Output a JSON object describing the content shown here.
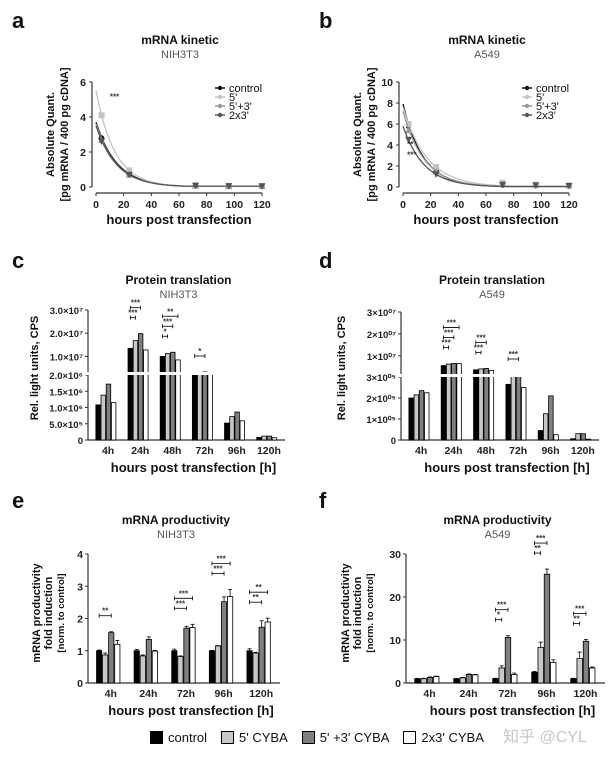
{
  "legend_bottom": {
    "items": [
      {
        "label": "control",
        "color": "#000000"
      },
      {
        "label": "5' CYBA",
        "color": "#c8c8c8"
      },
      {
        "label": "5' +3' CYBA",
        "color": "#808080"
      },
      {
        "label": "2x3' CYBA",
        "color": "#ffffff"
      }
    ]
  },
  "watermark": "知乎 @CYL",
  "chart_data": [
    {
      "panel": "a",
      "type": "line",
      "title": "mRNA kinetic",
      "subtitle": "NIH3T3",
      "xlabel": "hours post transfection",
      "ylabel": [
        "Absolute Quant.",
        "[pg mRNA / 400 pg cDNA]"
      ],
      "xlim": [
        0,
        120
      ],
      "ylim": [
        0,
        6
      ],
      "xticks": [
        0,
        20,
        40,
        60,
        80,
        100,
        120
      ],
      "yticks": [
        0,
        2,
        4,
        6
      ],
      "legend": "top-right",
      "x": [
        4,
        24,
        72,
        96,
        120
      ],
      "series": [
        {
          "name": "control",
          "color": "#111111",
          "marker": "circle",
          "values": [
            2.8,
            0.75,
            0.08,
            0.05,
            0.05
          ],
          "fit_start": 3.7
        },
        {
          "name": "5'",
          "color": "#c4c4c4",
          "marker": "square",
          "values": [
            4.1,
            0.95,
            0.1,
            0.06,
            0.05
          ],
          "fit_start": 5.5
        },
        {
          "name": "5'+3'",
          "color": "#9a9a9a",
          "marker": "triangle-up",
          "values": [
            2.7,
            0.7,
            0.08,
            0.05,
            0.05
          ],
          "fit_start": 3.6
        },
        {
          "name": "2x3'",
          "color": "#555555",
          "marker": "triangle-down",
          "values": [
            2.6,
            0.7,
            0.07,
            0.05,
            0.04
          ],
          "fit_start": 3.5
        }
      ],
      "annotations": [
        {
          "text": "***",
          "x": 10,
          "y": 5
        }
      ]
    },
    {
      "panel": "b",
      "type": "line",
      "title": "mRNA kinetic",
      "subtitle": "A549",
      "xlabel": "hours post transfection",
      "ylabel": [
        "Absolute Quant.",
        "[pg mRNA / 400 pg cDNA]"
      ],
      "xlim": [
        0,
        120
      ],
      "ylim": [
        0,
        10
      ],
      "xticks": [
        0,
        20,
        40,
        60,
        80,
        100,
        120
      ],
      "yticks": [
        0,
        2,
        4,
        6,
        8,
        10
      ],
      "legend": "top-right",
      "x": [
        4,
        24,
        72,
        96,
        120
      ],
      "series": [
        {
          "name": "control",
          "color": "#111111",
          "marker": "circle",
          "values": [
            5.8,
            1.5,
            0.2,
            0.15,
            0.1
          ],
          "fit_start": 7.9
        },
        {
          "name": "5'",
          "color": "#c4c4c4",
          "marker": "square",
          "values": [
            6.0,
            1.9,
            0.4,
            0.2,
            0.15
          ],
          "fit_start": 7.6
        },
        {
          "name": "5'+3'",
          "color": "#9a9a9a",
          "marker": "triangle-up",
          "values": [
            5.4,
            1.5,
            0.3,
            0.2,
            0.15
          ],
          "fit_start": 7.2
        },
        {
          "name": "2x3'",
          "color": "#555555",
          "marker": "triangle-down",
          "values": [
            4.5,
            1.2,
            0.2,
            0.15,
            0.1
          ],
          "fit_start": 5.8
        }
      ],
      "annotations": [
        {
          "text": "**",
          "x": 3,
          "y": 3.8
        },
        {
          "text": "***",
          "x": 3,
          "y": 2.8
        }
      ]
    },
    {
      "panel": "c",
      "type": "bar",
      "title": "Protein translation",
      "subtitle": "NIH3T3",
      "xlabel": "hours post transfection [h]",
      "ylabel": "Rel. light units, CPS",
      "axis_break": true,
      "lower_ylim": [
        0,
        2000000
      ],
      "upper_ylim": [
        2000000,
        30000000
      ],
      "lower_yticks": [
        "0",
        "5.0×10⁵",
        "1.0×10⁶",
        "1.5×10⁶",
        "2.0×10⁶"
      ],
      "upper_yticks": [
        "1.0×10⁷",
        "2.0×10⁷",
        "3.0×10⁷"
      ],
      "upper_ytick_values": [
        10000000,
        20000000,
        30000000
      ],
      "lower_ytick_values": [
        0,
        500000,
        1000000,
        1500000,
        2000000
      ],
      "categories": [
        "4h",
        "24h",
        "48h",
        "72h",
        "96h",
        "120h"
      ],
      "series": [
        {
          "name": "control",
          "values": [
            1080000,
            13500000,
            10000000,
            2400000,
            520000,
            80000
          ]
        },
        {
          "name": "5' CYBA",
          "values": [
            1380000,
            16800000,
            11200000,
            3000000,
            720000,
            120000
          ]
        },
        {
          "name": "5' +3' CYBA",
          "values": [
            1720000,
            19800000,
            11800000,
            3300000,
            860000,
            120000
          ]
        },
        {
          "name": "2x3' CYBA",
          "values": [
            1150000,
            12800000,
            8500000,
            2600000,
            590000,
            70000
          ]
        }
      ],
      "significance": [
        {
          "group": 1,
          "from": 0,
          "to": 2,
          "text": "***",
          "level": 2
        },
        {
          "group": 1,
          "from": 0,
          "to": 1,
          "text": "***",
          "level": 1
        },
        {
          "group": 2,
          "from": 0,
          "to": 3,
          "text": "**",
          "level": 3
        },
        {
          "group": 2,
          "from": 0,
          "to": 2,
          "text": "***",
          "level": 2
        },
        {
          "group": 2,
          "from": 0,
          "to": 1,
          "text": "*",
          "level": 1
        },
        {
          "group": 3,
          "from": 0,
          "to": 2,
          "text": "*",
          "level": 1
        }
      ]
    },
    {
      "panel": "d",
      "type": "bar",
      "title": "Protein translation",
      "subtitle": "A549",
      "xlabel": "hours post transfection [h]",
      "ylabel": "Rel. light units, CPS",
      "axis_break": true,
      "lower_ylim": [
        0,
        300000
      ],
      "upper_ylim": [
        300000,
        30000000
      ],
      "lower_yticks": [
        "0",
        "1×10⁰⁵",
        "2×10⁰⁵",
        "3×10⁰⁵"
      ],
      "upper_yticks": [
        "1×10⁰⁷",
        "2×10⁰⁷",
        "3×10⁰⁷"
      ],
      "upper_ytick_values": [
        10000000,
        20000000,
        30000000
      ],
      "lower_ytick_values": [
        0,
        100000,
        200000,
        300000
      ],
      "categories": [
        "4h",
        "24h",
        "48h",
        "72h",
        "96h",
        "120h"
      ],
      "series": [
        {
          "name": "control",
          "values": [
            200000,
            5500000,
            3600000,
            265000,
            45000,
            6000
          ]
        },
        {
          "name": "5' CYBA",
          "values": [
            215000,
            6200000,
            4000000,
            1000000,
            125000,
            30000
          ]
        },
        {
          "name": "5' +3' CYBA",
          "values": [
            235000,
            6500000,
            4200000,
            1200000,
            210000,
            30000
          ]
        },
        {
          "name": "2x3' CYBA",
          "values": [
            225000,
            6400000,
            3300000,
            250000,
            25000,
            4000
          ]
        }
      ],
      "significance": [
        {
          "group": 1,
          "from": 0,
          "to": 3,
          "text": "***",
          "level": 3
        },
        {
          "group": 1,
          "from": 0,
          "to": 2,
          "text": "***",
          "level": 2
        },
        {
          "group": 1,
          "from": 0,
          "to": 1,
          "text": "***",
          "level": 1
        },
        {
          "group": 2,
          "from": 0,
          "to": 2,
          "text": "***",
          "level": 2
        },
        {
          "group": 2,
          "from": 0,
          "to": 1,
          "text": "***",
          "level": 1
        },
        {
          "group": 3,
          "from": 0,
          "to": 2,
          "text": "***",
          "level": 1
        }
      ]
    },
    {
      "panel": "e",
      "type": "bar",
      "title": "mRNA productivity",
      "subtitle": "NIH3T3",
      "xlabel": "hours post transfection [h]",
      "ylabel": [
        "mRNA productivity",
        "fold induction",
        "[norm. to control]"
      ],
      "ylim": [
        0,
        4
      ],
      "yticks": [
        0,
        1,
        2,
        3,
        4
      ],
      "categories": [
        "4h",
        "24h",
        "72h",
        "96h",
        "120h"
      ],
      "series": [
        {
          "name": "control",
          "values": [
            1.0,
            1.0,
            1.0,
            1.0,
            1.0
          ],
          "errors": [
            0.02,
            0.04,
            0.05,
            0.01,
            0.06
          ]
        },
        {
          "name": "5' CYBA",
          "values": [
            0.87,
            0.84,
            0.82,
            1.15,
            0.93
          ],
          "errors": [
            0.06,
            0.03,
            0.02,
            0.01,
            0.02
          ]
        },
        {
          "name": "5' +3' CYBA",
          "values": [
            1.56,
            1.35,
            1.7,
            2.52,
            1.73
          ],
          "errors": [
            0.03,
            0.08,
            0.06,
            0.15,
            0.2
          ]
        },
        {
          "name": "2x3' CYBA",
          "values": [
            1.2,
            0.99,
            1.72,
            2.68,
            1.89
          ],
          "errors": [
            0.12,
            0.02,
            0.1,
            0.22,
            0.12
          ]
        }
      ],
      "significance": [
        {
          "group": 0,
          "from": 0,
          "to": 2,
          "text": "**",
          "level": 1
        },
        {
          "group": 2,
          "from": 0,
          "to": 3,
          "text": "***",
          "level": 2
        },
        {
          "group": 2,
          "from": 0,
          "to": 2,
          "text": "***",
          "level": 1
        },
        {
          "group": 3,
          "from": 0,
          "to": 3,
          "text": "***",
          "level": 2
        },
        {
          "group": 3,
          "from": 0,
          "to": 2,
          "text": "***",
          "level": 1
        },
        {
          "group": 4,
          "from": 0,
          "to": 3,
          "text": "**",
          "level": 2
        },
        {
          "group": 4,
          "from": 0,
          "to": 2,
          "text": "**",
          "level": 1
        }
      ]
    },
    {
      "panel": "f",
      "type": "bar",
      "title": "mRNA productivity",
      "subtitle": "A549",
      "xlabel": "hours post transfection [h]",
      "ylabel": [
        "mRNA productivity",
        "fold induction",
        "[norm. to control]"
      ],
      "ylim": [
        0,
        30
      ],
      "yticks": [
        0,
        10,
        20,
        30
      ],
      "categories": [
        "4h",
        "24h",
        "72h",
        "96h",
        "120h"
      ],
      "series": [
        {
          "name": "control",
          "values": [
            1.0,
            1.0,
            1.0,
            2.5,
            1.0
          ],
          "errors": [
            0.05,
            0.05,
            0.1,
            0.2,
            0.1
          ]
        },
        {
          "name": "5' CYBA",
          "values": [
            1.0,
            1.2,
            3.5,
            8.3,
            5.7
          ],
          "errors": [
            0.1,
            0.1,
            0.5,
            1.2,
            1.5
          ]
        },
        {
          "name": "5' +3' CYBA",
          "values": [
            1.3,
            2.0,
            10.6,
            25.3,
            9.7
          ],
          "errors": [
            0.1,
            0.1,
            0.4,
            1.2,
            0.4
          ]
        },
        {
          "name": "2x3' CYBA",
          "values": [
            1.5,
            1.9,
            2.0,
            4.8,
            3.5
          ],
          "errors": [
            0.1,
            0.1,
            0.3,
            0.6,
            0.2
          ]
        }
      ],
      "significance": [
        {
          "group": 2,
          "from": 0,
          "to": 2,
          "text": "***",
          "level": 2
        },
        {
          "group": 2,
          "from": 0,
          "to": 1,
          "text": "*",
          "level": 1
        },
        {
          "group": 3,
          "from": 0,
          "to": 2,
          "text": "***",
          "level": 2
        },
        {
          "group": 3,
          "from": 0,
          "to": 1,
          "text": "**",
          "level": 1
        },
        {
          "group": 4,
          "from": 0,
          "to": 2,
          "text": "***",
          "level": 2
        },
        {
          "group": 4,
          "from": 0,
          "to": 1,
          "text": "**",
          "level": 1
        }
      ]
    }
  ]
}
